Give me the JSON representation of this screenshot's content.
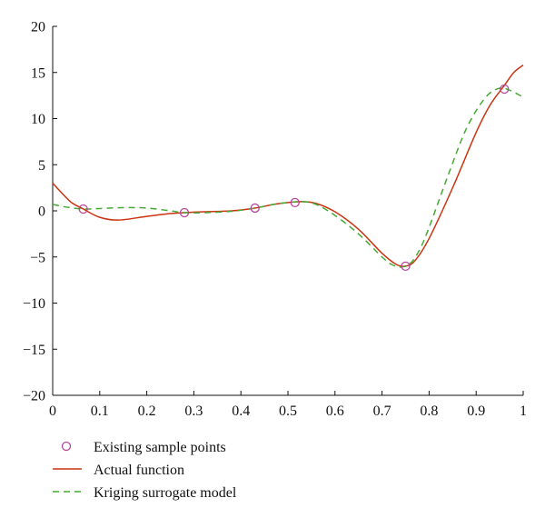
{
  "chart_data": {
    "type": "line",
    "xlim": [
      0,
      1
    ],
    "ylim": [
      -20,
      20
    ],
    "x_ticks": [
      0,
      0.1,
      0.2,
      0.3,
      0.4,
      0.5,
      0.6,
      0.7,
      0.8,
      0.9,
      1
    ],
    "x_tick_labels": [
      "0",
      "0.1",
      "0.2",
      "0.3",
      "0.4",
      "0.5",
      "0.6",
      "0.7",
      "0.8",
      "0.9",
      "1"
    ],
    "y_ticks": [
      20,
      15,
      10,
      5,
      0,
      -5,
      -10,
      -15,
      -20
    ],
    "y_tick_labels": [
      "20",
      "15",
      "10",
      "5",
      "0",
      "−5",
      "−10",
      "−15",
      "−20"
    ],
    "grid": false,
    "legend_position": "bottom-left",
    "series": [
      {
        "name": "Existing sample points",
        "kind": "scatter",
        "color": "#b5489a",
        "x": [
          0.065,
          0.28,
          0.43,
          0.515,
          0.75,
          0.96
        ],
        "y": [
          0.2,
          -0.2,
          0.3,
          0.9,
          -6.0,
          13.2
        ]
      },
      {
        "name": "Actual function",
        "kind": "line",
        "color": "#cc3311",
        "x": [
          0,
          0.02,
          0.04,
          0.065,
          0.1,
          0.14,
          0.2,
          0.25,
          0.28,
          0.32,
          0.38,
          0.43,
          0.47,
          0.5,
          0.53,
          0.56,
          0.6,
          0.65,
          0.7,
          0.73,
          0.75,
          0.77,
          0.8,
          0.85,
          0.9,
          0.93,
          0.96,
          0.98,
          1
        ],
        "y": [
          3.0,
          1.9,
          0.9,
          0.2,
          -0.7,
          -1.0,
          -0.6,
          -0.3,
          -0.2,
          -0.1,
          0.0,
          0.3,
          0.7,
          0.9,
          1.0,
          0.8,
          -0.1,
          -2.0,
          -4.6,
          -5.8,
          -6.0,
          -5.4,
          -3.0,
          2.5,
          8.5,
          11.5,
          13.6,
          15.0,
          15.8
        ]
      },
      {
        "name": "Kriging surrogate model",
        "kind": "line",
        "style": "dashed",
        "color": "#44aa33",
        "x": [
          0,
          0.03,
          0.065,
          0.1,
          0.15,
          0.2,
          0.25,
          0.28,
          0.32,
          0.38,
          0.43,
          0.47,
          0.5,
          0.53,
          0.56,
          0.6,
          0.65,
          0.7,
          0.72,
          0.74,
          0.76,
          0.78,
          0.8,
          0.84,
          0.88,
          0.92,
          0.95,
          0.97,
          0.99,
          1
        ],
        "y": [
          0.7,
          0.4,
          0.2,
          0.25,
          0.35,
          0.3,
          0.0,
          -0.2,
          -0.2,
          -0.05,
          0.3,
          0.7,
          0.9,
          1.0,
          0.7,
          -0.5,
          -2.5,
          -5.0,
          -5.8,
          -6.1,
          -5.7,
          -4.2,
          -1.8,
          3.8,
          9.0,
          12.3,
          13.3,
          13.1,
          12.6,
          12.3
        ]
      }
    ]
  },
  "legend": {
    "items": [
      {
        "label": "Existing sample points",
        "marker": "circle",
        "color": "#b5489a"
      },
      {
        "label": "Actual function",
        "marker": "solid-line",
        "color": "#cc3311"
      },
      {
        "label": "Kriging surrogate model",
        "marker": "dashed-line",
        "color": "#44aa33"
      }
    ]
  }
}
